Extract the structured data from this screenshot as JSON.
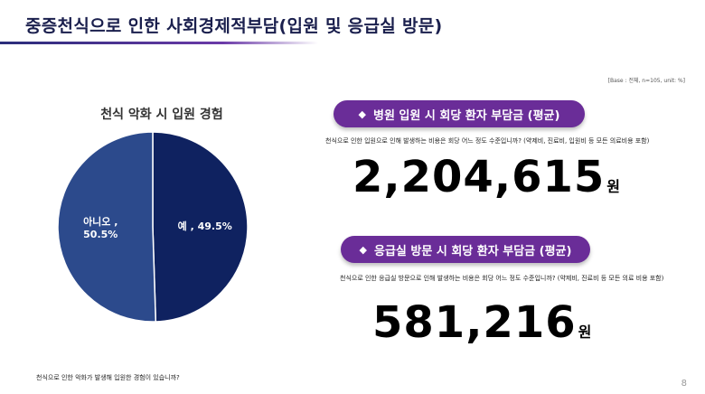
{
  "header": {
    "title": "중증천식으로 인한 사회경제적부담(입원 및 응급실 방문)"
  },
  "base_note": "[Base : 전체, n=105, unit: %]",
  "chart_data": {
    "type": "pie",
    "title": "천식 악화 시 입원 경험",
    "categories": [
      "예",
      "아니오"
    ],
    "values": [
      49.5,
      50.5
    ],
    "labels": [
      "예 , 49.5%",
      "아니오 ,\n50.5%"
    ],
    "colors": [
      "#0f2260",
      "#2c4a8c"
    ],
    "legend": "none"
  },
  "cards": [
    {
      "label": "병원 입원 시 회당 환자 부담금 (평균)",
      "question": "천식으로 인한 입원으로 인해 발생하는 비용은 회당 어느 정도 수준입니까? (약제비, 진료비, 입원비 등 모든 의료비용 포함)",
      "amount": "2,204,615",
      "unit": "원"
    },
    {
      "label": "응급실 방문 시 회당 환자 부담금 (평균)",
      "question": "천식으로 인한 응급실 방문으로 인해 발생하는 비용은 회당 어느 정도 수준입니까? (약제비, 진료비 등 모든 의료 비용 포함)",
      "amount": "581,216",
      "unit": "원"
    }
  ],
  "footnote": "천식으로 인한 악화가 발생해 입원한 경험이 있습니까?",
  "page_number": "8",
  "icons": {
    "bullet": "diamond-icon",
    "bullet_glyph": "◆"
  },
  "colors": {
    "pill": "#6a2d98",
    "title": "#1a1f4d"
  }
}
